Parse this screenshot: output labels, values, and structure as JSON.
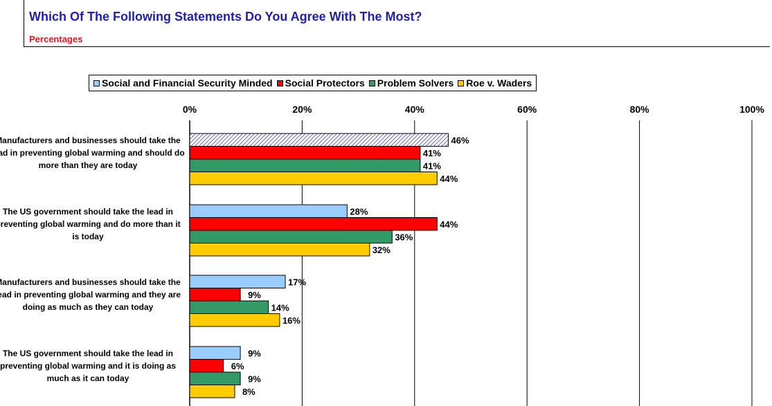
{
  "header": {
    "title": "Which Of The Following Statements Do You Agree With The Most?",
    "subtitle": "Percentages"
  },
  "chart_data": {
    "type": "bar",
    "orientation": "horizontal",
    "title": "Which Of The Following Statements Do You Agree With The Most?",
    "subtitle": "Percentages",
    "categories": [
      "Manufacturers and businesses should take the lead in preventing global warming and should do more than they are today",
      "The US government should take the lead in preventing global warming and do more than it is today",
      "Manufacturers and businesses should take the lead in preventing global warming and they are doing as much as they can today",
      "The US government should take the lead in preventing global warming and it is doing as much as it can today"
    ],
    "series": [
      {
        "name": "Social and Financial Security Minded",
        "color": "#99ccff",
        "values": [
          46,
          28,
          17,
          9
        ]
      },
      {
        "name": "Social Protectors",
        "color": "#ff0000",
        "values": [
          41,
          44,
          9,
          6
        ]
      },
      {
        "name": "Problem Solvers",
        "color": "#339966",
        "values": [
          41,
          36,
          14,
          9
        ]
      },
      {
        "name": "Roe v. Waders",
        "color": "#ffcc00",
        "values": [
          44,
          32,
          16,
          8
        ]
      }
    ],
    "data_labels": [
      [
        "46%",
        "28%",
        "17%",
        "9%"
      ],
      [
        "41%",
        "44%",
        "9%",
        "6%"
      ],
      [
        "41%",
        "36%",
        "14%",
        "9%"
      ],
      [
        "44%",
        "32%",
        "16%",
        "8%"
      ]
    ],
    "highlight": {
      "series": 0,
      "category": 0,
      "pattern": "diagonal-hatch"
    },
    "xlim": [
      0,
      100
    ],
    "xticks": [
      0,
      20,
      40,
      60,
      80,
      100
    ],
    "xtick_labels": [
      "0%",
      "20%",
      "40%",
      "60%",
      "80%",
      "100%"
    ],
    "xaxis_position": "top",
    "grid": true,
    "legend_position": "top"
  }
}
